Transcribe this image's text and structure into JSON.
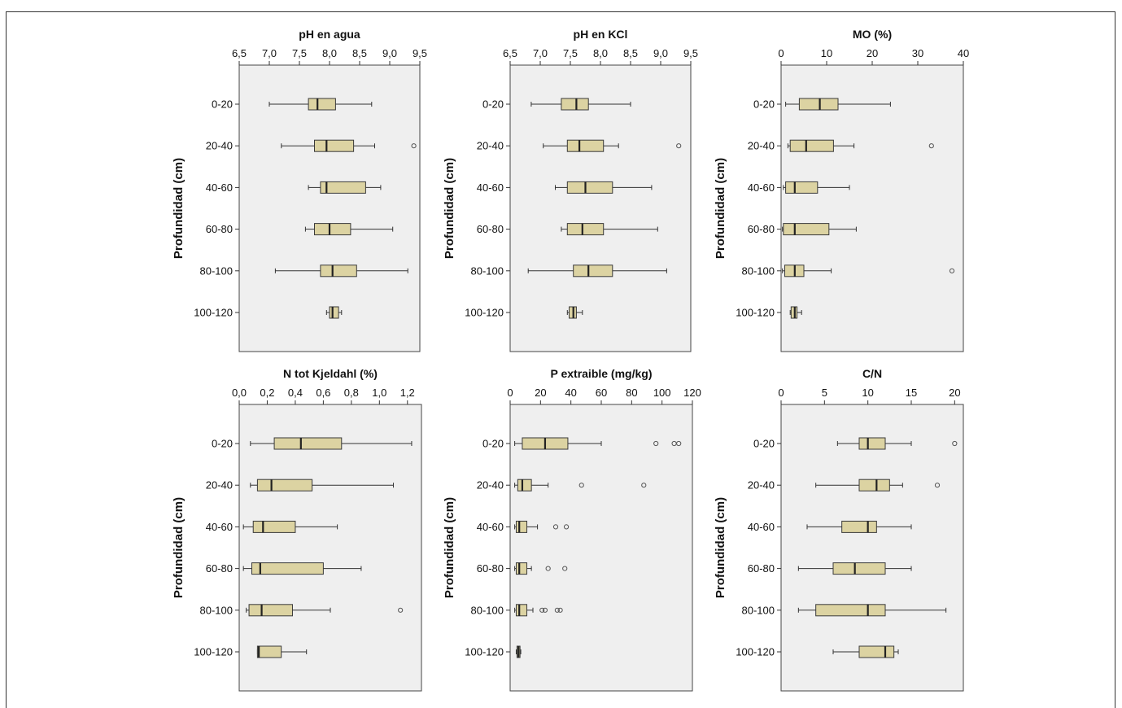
{
  "chart_data": [
    {
      "type": "boxplot",
      "title": "pH en agua",
      "ylabel": "Profundidad (cm)",
      "categories": [
        "0-20",
        "20-40",
        "40-60",
        "60-80",
        "80-100",
        "100-120"
      ],
      "xlim": [
        6.5,
        9.5
      ],
      "xticks": [
        6.5,
        7.0,
        7.5,
        8.0,
        8.5,
        9.0,
        9.5
      ],
      "xtick_labels": [
        "6,5",
        "7,0",
        "7,5",
        "8,0",
        "8,5",
        "9,0",
        "9,5"
      ],
      "boxes": [
        {
          "category": "0-20",
          "whisker_low": 7.0,
          "q1": 7.65,
          "median": 7.8,
          "q3": 8.1,
          "whisker_high": 8.7,
          "outliers": []
        },
        {
          "category": "20-40",
          "whisker_low": 7.2,
          "q1": 7.75,
          "median": 7.95,
          "q3": 8.4,
          "whisker_high": 8.75,
          "outliers": [
            9.4
          ]
        },
        {
          "category": "40-60",
          "whisker_low": 7.65,
          "q1": 7.85,
          "median": 7.95,
          "q3": 8.6,
          "whisker_high": 8.85,
          "outliers": []
        },
        {
          "category": "60-80",
          "whisker_low": 7.6,
          "q1": 7.75,
          "median": 8.0,
          "q3": 8.35,
          "whisker_high": 9.05,
          "outliers": []
        },
        {
          "category": "80-100",
          "whisker_low": 7.1,
          "q1": 7.85,
          "median": 8.05,
          "q3": 8.45,
          "whisker_high": 9.3,
          "outliers": []
        },
        {
          "category": "100-120",
          "whisker_low": 7.95,
          "q1": 8.0,
          "median": 8.05,
          "q3": 8.15,
          "whisker_high": 8.2,
          "outliers": []
        }
      ]
    },
    {
      "type": "boxplot",
      "title": "pH en KCl",
      "ylabel": "Profundidad (cm)",
      "categories": [
        "0-20",
        "20-40",
        "40-60",
        "60-80",
        "80-100",
        "100-120"
      ],
      "xlim": [
        6.5,
        9.5
      ],
      "xticks": [
        6.5,
        7.0,
        7.5,
        8.0,
        8.5,
        9.0,
        9.5
      ],
      "xtick_labels": [
        "6,5",
        "7,0",
        "7,5",
        "8,0",
        "8,5",
        "9,0",
        "9,5"
      ],
      "boxes": [
        {
          "category": "0-20",
          "whisker_low": 6.85,
          "q1": 7.35,
          "median": 7.6,
          "q3": 7.8,
          "whisker_high": 8.5,
          "outliers": []
        },
        {
          "category": "20-40",
          "whisker_low": 7.05,
          "q1": 7.45,
          "median": 7.65,
          "q3": 8.05,
          "whisker_high": 8.3,
          "outliers": [
            9.3
          ]
        },
        {
          "category": "40-60",
          "whisker_low": 7.25,
          "q1": 7.45,
          "median": 7.75,
          "q3": 8.2,
          "whisker_high": 8.85,
          "outliers": []
        },
        {
          "category": "60-80",
          "whisker_low": 7.35,
          "q1": 7.45,
          "median": 7.7,
          "q3": 8.05,
          "whisker_high": 8.95,
          "outliers": []
        },
        {
          "category": "80-100",
          "whisker_low": 6.8,
          "q1": 7.55,
          "median": 7.8,
          "q3": 8.2,
          "whisker_high": 9.1,
          "outliers": []
        },
        {
          "category": "100-120",
          "whisker_low": 7.45,
          "q1": 7.48,
          "median": 7.55,
          "q3": 7.6,
          "whisker_high": 7.7,
          "outliers": []
        }
      ]
    },
    {
      "type": "boxplot",
      "title": "MO (%)",
      "ylabel": "Profundidad (cm)",
      "categories": [
        "0-20",
        "20-40",
        "40-60",
        "60-80",
        "80-100",
        "100-120"
      ],
      "xlim": [
        0,
        40
      ],
      "xticks": [
        0,
        10,
        20,
        30,
        40
      ],
      "xtick_labels": [
        "0",
        "10",
        "20",
        "30",
        "40"
      ],
      "boxes": [
        {
          "category": "0-20",
          "whisker_low": 1,
          "q1": 4,
          "median": 8.5,
          "q3": 12.5,
          "whisker_high": 24,
          "outliers": []
        },
        {
          "category": "20-40",
          "whisker_low": 1.5,
          "q1": 2,
          "median": 5.5,
          "q3": 11.5,
          "whisker_high": 16,
          "outliers": [
            33
          ]
        },
        {
          "category": "40-60",
          "whisker_low": 0.5,
          "q1": 1,
          "median": 3,
          "q3": 8,
          "whisker_high": 15,
          "outliers": []
        },
        {
          "category": "60-80",
          "whisker_low": 0.3,
          "q1": 0.5,
          "median": 3,
          "q3": 10.5,
          "whisker_high": 16.5,
          "outliers": []
        },
        {
          "category": "80-100",
          "whisker_low": 0.3,
          "q1": 0.8,
          "median": 3,
          "q3": 5,
          "whisker_high": 11,
          "outliers": [
            37.5
          ]
        },
        {
          "category": "100-120",
          "whisker_low": 2,
          "q1": 2.2,
          "median": 3,
          "q3": 3.5,
          "whisker_high": 4.5,
          "outliers": []
        }
      ]
    },
    {
      "type": "boxplot",
      "title": "N tot Kjeldahl (%)",
      "ylabel": "Profundidad (cm)",
      "categories": [
        "0-20",
        "20-40",
        "40-60",
        "60-80",
        "80-100",
        "100-120"
      ],
      "xlim": [
        0.0,
        1.3
      ],
      "xticks": [
        0.0,
        0.2,
        0.4,
        0.6,
        0.8,
        1.0,
        1.2
      ],
      "xtick_labels": [
        "0,0",
        "0,2",
        "0,4",
        "0,6",
        "0,8",
        "1,0",
        "1,2"
      ],
      "boxes": [
        {
          "category": "0-20",
          "whisker_low": 0.08,
          "q1": 0.25,
          "median": 0.44,
          "q3": 0.73,
          "whisker_high": 1.23,
          "outliers": []
        },
        {
          "category": "20-40",
          "whisker_low": 0.08,
          "q1": 0.13,
          "median": 0.23,
          "q3": 0.52,
          "whisker_high": 1.1,
          "outliers": []
        },
        {
          "category": "40-60",
          "whisker_low": 0.03,
          "q1": 0.1,
          "median": 0.17,
          "q3": 0.4,
          "whisker_high": 0.7,
          "outliers": []
        },
        {
          "category": "60-80",
          "whisker_low": 0.03,
          "q1": 0.09,
          "median": 0.15,
          "q3": 0.6,
          "whisker_high": 0.87,
          "outliers": []
        },
        {
          "category": "80-100",
          "whisker_low": 0.05,
          "q1": 0.07,
          "median": 0.16,
          "q3": 0.38,
          "whisker_high": 0.65,
          "outliers": [
            1.15
          ]
        },
        {
          "category": "100-120",
          "whisker_low": 0.13,
          "q1": 0.13,
          "median": 0.14,
          "q3": 0.3,
          "whisker_high": 0.48,
          "outliers": []
        }
      ]
    },
    {
      "type": "boxplot",
      "title": "P extraible (mg/kg)",
      "ylabel": "Profundidad (cm)",
      "categories": [
        "0-20",
        "20-40",
        "40-60",
        "60-80",
        "80-100",
        "100-120"
      ],
      "xlim": [
        0,
        120
      ],
      "xticks": [
        0,
        20,
        40,
        60,
        80,
        100,
        120
      ],
      "xtick_labels": [
        "0",
        "20",
        "40",
        "60",
        "80",
        "100",
        "120"
      ],
      "boxes": [
        {
          "category": "0-20",
          "whisker_low": 3,
          "q1": 8,
          "median": 23,
          "q3": 38,
          "whisker_high": 60,
          "outliers": [
            96,
            108,
            111
          ]
        },
        {
          "category": "20-40",
          "whisker_low": 3,
          "q1": 5,
          "median": 8,
          "q3": 14,
          "whisker_high": 25,
          "outliers": [
            47,
            88
          ]
        },
        {
          "category": "40-60",
          "whisker_low": 3,
          "q1": 4,
          "median": 6,
          "q3": 11,
          "whisker_high": 18,
          "outliers": [
            30,
            37
          ]
        },
        {
          "category": "60-80",
          "whisker_low": 3,
          "q1": 4,
          "median": 6,
          "q3": 11,
          "whisker_high": 14,
          "outliers": [
            25,
            36
          ]
        },
        {
          "category": "80-100",
          "whisker_low": 3,
          "q1": 4,
          "median": 6,
          "q3": 11,
          "whisker_high": 15,
          "outliers": [
            21,
            23,
            31,
            33
          ]
        },
        {
          "category": "100-120",
          "whisker_low": 4,
          "q1": 4.5,
          "median": 5.5,
          "q3": 6.5,
          "whisker_high": 7,
          "outliers": []
        }
      ]
    },
    {
      "type": "boxplot",
      "title": "C/N",
      "ylabel": "Profundidad (cm)",
      "categories": [
        "0-20",
        "20-40",
        "40-60",
        "60-80",
        "80-100",
        "100-120"
      ],
      "xlim": [
        0,
        21
      ],
      "xticks": [
        0,
        5,
        10,
        15,
        20
      ],
      "xtick_labels": [
        "0",
        "5",
        "10",
        "15",
        "20"
      ],
      "boxes": [
        {
          "category": "0-20",
          "whisker_low": 6.5,
          "q1": 9,
          "median": 10,
          "q3": 12,
          "whisker_high": 15,
          "outliers": [
            20
          ]
        },
        {
          "category": "20-40",
          "whisker_low": 4,
          "q1": 9,
          "median": 11,
          "q3": 12.5,
          "whisker_high": 14,
          "outliers": [
            18
          ]
        },
        {
          "category": "40-60",
          "whisker_low": 3,
          "q1": 7,
          "median": 10,
          "q3": 11,
          "whisker_high": 15,
          "outliers": []
        },
        {
          "category": "60-80",
          "whisker_low": 2,
          "q1": 6,
          "median": 8.5,
          "q3": 12,
          "whisker_high": 15,
          "outliers": []
        },
        {
          "category": "80-100",
          "whisker_low": 2,
          "q1": 4,
          "median": 10,
          "q3": 12,
          "whisker_high": 19,
          "outliers": []
        },
        {
          "category": "100-120",
          "whisker_low": 6,
          "q1": 9,
          "median": 12,
          "q3": 13,
          "whisker_high": 13.5,
          "outliers": []
        }
      ]
    }
  ],
  "style": {
    "box_fill": "#dcd3a2",
    "box_stroke": "#3a3a3a",
    "plot_bg": "#efefef",
    "outlier_stroke": "#555555"
  }
}
